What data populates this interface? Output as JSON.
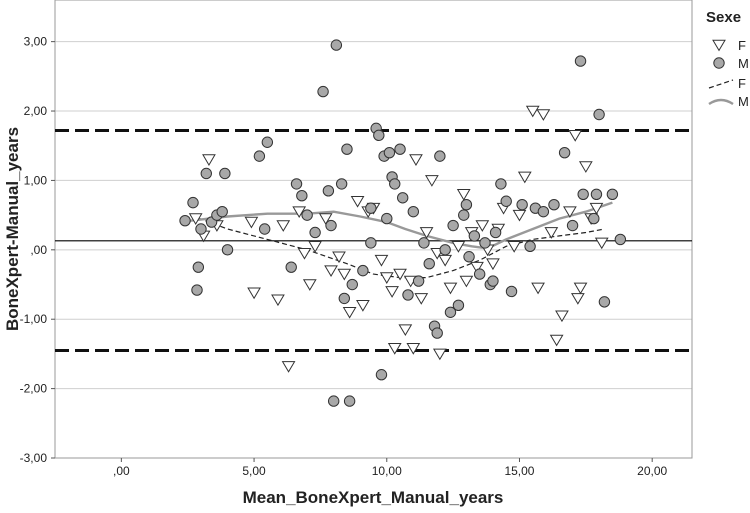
{
  "chart_data": {
    "type": "scatter",
    "xlabel": "Mean_BoneXpert_Manual_years",
    "ylabel": "BoneXpert-Manual_years",
    "xlim": [
      -2.5,
      21.5
    ],
    "ylim": [
      -3.0,
      3.6
    ],
    "x_ticks": [
      0,
      5,
      10,
      15,
      20
    ],
    "x_tick_labels": [
      ",00",
      "5,00",
      "10,00",
      "15,00",
      "20,00"
    ],
    "y_ticks": [
      -3,
      -2,
      -1,
      0,
      1,
      2,
      3
    ],
    "y_tick_labels": [
      "-3,00",
      "-2,00",
      "-1,00",
      ",00",
      "1,00",
      "2,00",
      "3,00"
    ],
    "grid": "horizontal",
    "legend_placement": "right",
    "legend_title": "Sexe",
    "reference_lines": {
      "mean": 0.13,
      "upper_limit": 1.72,
      "lower_limit": -1.45
    },
    "series": [
      {
        "name": "F",
        "marker": "triangle-down",
        "points": [
          [
            2.8,
            0.45
          ],
          [
            3.1,
            0.2
          ],
          [
            3.3,
            1.3
          ],
          [
            3.6,
            0.35
          ],
          [
            4.9,
            0.4
          ],
          [
            5.0,
            -0.62
          ],
          [
            5.9,
            -0.72
          ],
          [
            6.1,
            0.35
          ],
          [
            6.7,
            0.55
          ],
          [
            6.9,
            -0.05
          ],
          [
            7.1,
            -0.5
          ],
          [
            7.3,
            0.05
          ],
          [
            7.7,
            0.45
          ],
          [
            7.9,
            -0.3
          ],
          [
            8.2,
            -0.1
          ],
          [
            8.4,
            -0.35
          ],
          [
            8.6,
            -0.9
          ],
          [
            8.9,
            0.7
          ],
          [
            9.1,
            -0.8
          ],
          [
            9.5,
            0.6
          ],
          [
            9.8,
            -0.15
          ],
          [
            10.0,
            -0.4
          ],
          [
            10.2,
            -0.6
          ],
          [
            10.3,
            -1.42
          ],
          [
            10.5,
            -0.35
          ],
          [
            10.7,
            -1.15
          ],
          [
            10.9,
            -0.45
          ],
          [
            11.1,
            1.3
          ],
          [
            11.3,
            -0.7
          ],
          [
            11.5,
            0.25
          ],
          [
            11.7,
            1.0
          ],
          [
            11.9,
            -0.05
          ],
          [
            12.0,
            -1.5
          ],
          [
            12.2,
            -0.15
          ],
          [
            12.4,
            -0.55
          ],
          [
            12.7,
            0.05
          ],
          [
            12.9,
            0.8
          ],
          [
            13.0,
            -0.45
          ],
          [
            13.2,
            0.25
          ],
          [
            13.4,
            -0.25
          ],
          [
            13.6,
            0.35
          ],
          [
            13.8,
            0.0
          ],
          [
            14.0,
            -0.2
          ],
          [
            14.2,
            0.3
          ],
          [
            14.4,
            0.6
          ],
          [
            14.8,
            0.05
          ],
          [
            15.0,
            0.5
          ],
          [
            15.2,
            1.05
          ],
          [
            15.5,
            2.0
          ],
          [
            15.7,
            -0.55
          ],
          [
            15.9,
            1.95
          ],
          [
            16.2,
            0.25
          ],
          [
            16.4,
            -1.3
          ],
          [
            16.6,
            -0.95
          ],
          [
            16.9,
            0.55
          ],
          [
            17.1,
            1.65
          ],
          [
            17.2,
            -0.7
          ],
          [
            17.3,
            -0.55
          ],
          [
            17.5,
            1.2
          ],
          [
            17.7,
            0.45
          ],
          [
            17.9,
            0.6
          ],
          [
            18.1,
            0.1
          ],
          [
            6.3,
            -1.68
          ],
          [
            9.3,
            0.55
          ],
          [
            11.0,
            -1.42
          ]
        ]
      },
      {
        "name": "M",
        "marker": "circle",
        "points": [
          [
            2.4,
            0.42
          ],
          [
            2.7,
            0.68
          ],
          [
            2.9,
            -0.25
          ],
          [
            2.85,
            -0.58
          ],
          [
            3.0,
            0.3
          ],
          [
            3.2,
            1.1
          ],
          [
            3.4,
            0.4
          ],
          [
            3.6,
            0.5
          ],
          [
            3.8,
            0.55
          ],
          [
            3.9,
            1.1
          ],
          [
            4.0,
            0.0
          ],
          [
            5.2,
            1.35
          ],
          [
            5.5,
            1.55
          ],
          [
            5.4,
            0.3
          ],
          [
            6.4,
            -0.25
          ],
          [
            6.6,
            0.95
          ],
          [
            6.8,
            0.78
          ],
          [
            7.0,
            0.5
          ],
          [
            7.3,
            0.25
          ],
          [
            7.6,
            2.28
          ],
          [
            7.8,
            0.85
          ],
          [
            7.9,
            0.35
          ],
          [
            8.0,
            -2.18
          ],
          [
            8.1,
            2.95
          ],
          [
            8.3,
            0.95
          ],
          [
            8.4,
            -0.7
          ],
          [
            8.5,
            1.45
          ],
          [
            8.6,
            -2.18
          ],
          [
            8.7,
            -0.5
          ],
          [
            9.1,
            -0.3
          ],
          [
            9.4,
            0.6
          ],
          [
            9.6,
            1.75
          ],
          [
            9.7,
            1.65
          ],
          [
            9.8,
            -1.8
          ],
          [
            9.9,
            1.35
          ],
          [
            10.0,
            0.45
          ],
          [
            10.1,
            1.4
          ],
          [
            10.2,
            1.05
          ],
          [
            10.3,
            0.95
          ],
          [
            10.5,
            1.45
          ],
          [
            10.6,
            0.75
          ],
          [
            10.8,
            -0.65
          ],
          [
            11.0,
            0.55
          ],
          [
            11.2,
            -0.45
          ],
          [
            11.4,
            0.1
          ],
          [
            11.6,
            -0.2
          ],
          [
            11.8,
            -1.1
          ],
          [
            12.0,
            1.35
          ],
          [
            12.2,
            0.0
          ],
          [
            12.5,
            0.35
          ],
          [
            12.7,
            -0.8
          ],
          [
            12.9,
            0.5
          ],
          [
            13.1,
            -0.1
          ],
          [
            13.3,
            0.2
          ],
          [
            13.5,
            -0.35
          ],
          [
            13.7,
            0.1
          ],
          [
            13.9,
            -0.5
          ],
          [
            14.1,
            0.25
          ],
          [
            14.3,
            0.95
          ],
          [
            14.5,
            0.7
          ],
          [
            14.7,
            -0.6
          ],
          [
            15.1,
            0.65
          ],
          [
            15.4,
            0.05
          ],
          [
            15.6,
            0.6
          ],
          [
            15.9,
            0.55
          ],
          [
            16.3,
            0.65
          ],
          [
            16.7,
            1.4
          ],
          [
            17.0,
            0.35
          ],
          [
            17.3,
            2.72
          ],
          [
            17.4,
            0.8
          ],
          [
            17.8,
            0.45
          ],
          [
            17.9,
            0.8
          ],
          [
            18.0,
            1.95
          ],
          [
            18.2,
            -0.75
          ],
          [
            18.5,
            0.8
          ],
          [
            18.8,
            0.15
          ],
          [
            14.0,
            -0.45
          ],
          [
            13.0,
            0.65
          ],
          [
            12.4,
            -0.9
          ],
          [
            11.9,
            -1.2
          ],
          [
            9.4,
            0.1
          ]
        ]
      }
    ],
    "fit_lines": [
      {
        "name": "F",
        "style": "dashed",
        "points": [
          [
            2.6,
            0.5
          ],
          [
            4.0,
            0.3
          ],
          [
            5.5,
            0.15
          ],
          [
            7.0,
            0.0
          ],
          [
            8.5,
            -0.2
          ],
          [
            9.5,
            -0.35
          ],
          [
            10.5,
            -0.4
          ],
          [
            11.5,
            -0.4
          ],
          [
            12.5,
            -0.3
          ],
          [
            13.5,
            -0.15
          ],
          [
            14.5,
            0.05
          ],
          [
            15.5,
            0.15
          ],
          [
            16.5,
            0.2
          ],
          [
            17.5,
            0.25
          ],
          [
            18.2,
            0.3
          ]
        ]
      },
      {
        "name": "M",
        "style": "solid",
        "points": [
          [
            2.6,
            0.42
          ],
          [
            4.0,
            0.48
          ],
          [
            5.5,
            0.52
          ],
          [
            7.0,
            0.52
          ],
          [
            8.0,
            0.55
          ],
          [
            9.0,
            0.48
          ],
          [
            10.0,
            0.4
          ],
          [
            10.7,
            0.3
          ],
          [
            11.5,
            0.2
          ],
          [
            12.5,
            0.1
          ],
          [
            13.2,
            0.05
          ],
          [
            13.8,
            0.02
          ],
          [
            14.5,
            0.15
          ],
          [
            15.5,
            0.3
          ],
          [
            16.5,
            0.45
          ],
          [
            17.5,
            0.55
          ],
          [
            18.5,
            0.68
          ]
        ]
      }
    ],
    "colors": {
      "marker_fill_m": "#a8a8a8",
      "marker_fill_f": "#ffffff",
      "marker_stroke": "#333333",
      "fit_m": "#999999",
      "fit_f": "#222222",
      "grid": "#cfcfcf",
      "frame": "#9a9a9a"
    }
  }
}
